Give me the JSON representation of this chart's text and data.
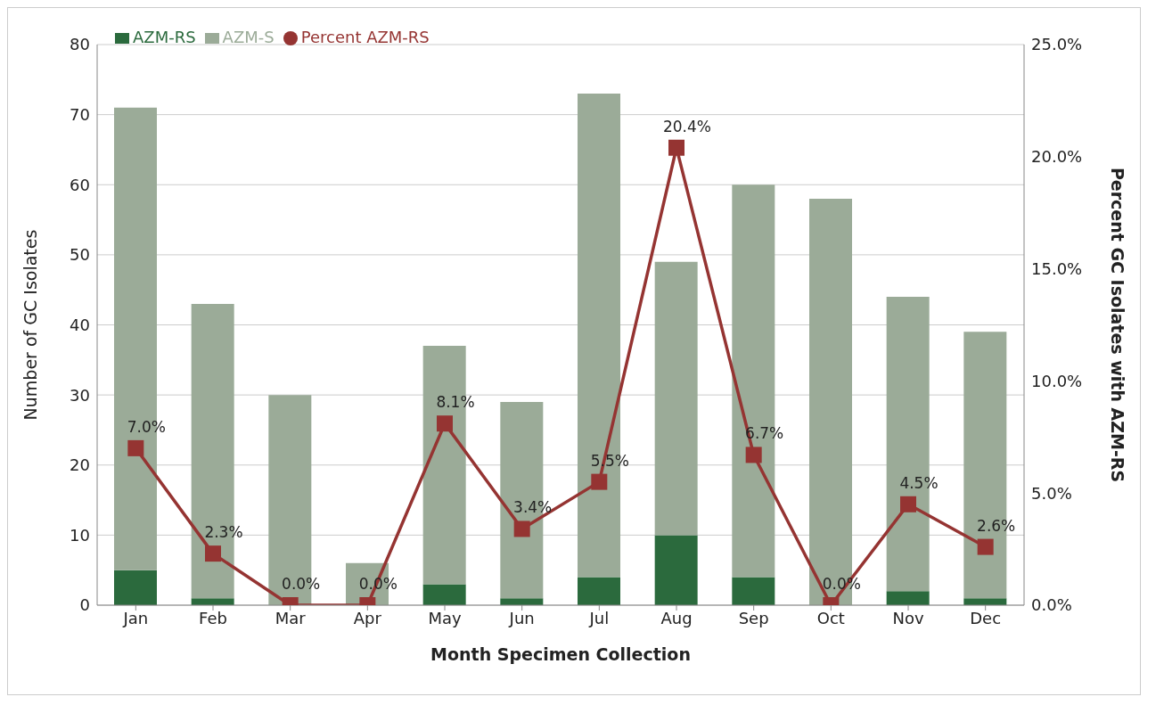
{
  "chart_data": {
    "type": "bar",
    "stacked": true,
    "xlabel": "Month Specimen Collection",
    "ylabel": "Number of GC Isolates",
    "y2label": "Percent GC Isolates with AZM-RS",
    "categories": [
      "Jan",
      "Feb",
      "Mar",
      "Apr",
      "May",
      "Jun",
      "Jul",
      "Aug",
      "Sep",
      "Oct",
      "Nov",
      "Dec"
    ],
    "series": [
      {
        "name": "AZM-RS",
        "color": "#2b6a3d",
        "values": [
          5,
          1,
          0,
          0,
          3,
          1,
          4,
          10,
          4,
          0,
          2,
          1
        ]
      },
      {
        "name": "AZM-S",
        "color": "#9bab98",
        "values": [
          66,
          42,
          30,
          6,
          34,
          28,
          69,
          39,
          56,
          58,
          42,
          38
        ]
      },
      {
        "name": "Percent AZM-RS",
        "type": "line",
        "axis": "y2",
        "color": "#953432",
        "marker": "square",
        "values": [
          7.0,
          2.3,
          0.0,
          0.0,
          8.1,
          3.4,
          5.5,
          20.4,
          6.7,
          0.0,
          4.5,
          2.6
        ],
        "value_labels": [
          "7.0%",
          "2.3%",
          "0.0%",
          "0.0%",
          "8.1%",
          "3.4%",
          "5.5%",
          "20.4%",
          "6.7%",
          "0.0%",
          "4.5%",
          "2.6%"
        ]
      }
    ],
    "ylim": [
      0,
      80
    ],
    "yticks": [
      0,
      10,
      20,
      30,
      40,
      50,
      60,
      70,
      80
    ],
    "y2lim": [
      0,
      25
    ],
    "y2ticks": [
      {
        "value": 0,
        "label": "0.0%"
      },
      {
        "value": 5,
        "label": "5.0%"
      },
      {
        "value": 10,
        "label": "10.0%"
      },
      {
        "value": 15,
        "label": "15.0%"
      },
      {
        "value": 20,
        "label": "20.0%"
      },
      {
        "value": 25,
        "label": "25.0%"
      }
    ],
    "grid": "y",
    "legend": "top left"
  }
}
